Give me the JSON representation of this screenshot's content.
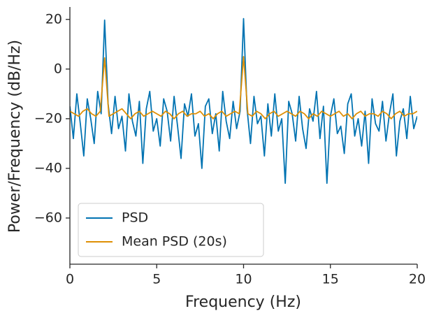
{
  "chart_data": {
    "type": "line",
    "xlabel": "Frequency (Hz)",
    "ylabel": "Power/Frequency (dB/Hz)",
    "xlim": [
      0,
      20
    ],
    "ylim": [
      -78.6,
      25
    ],
    "xticks": [
      0,
      5,
      10,
      15,
      20
    ],
    "yticks": [
      {
        "value": -60,
        "label": "−60"
      },
      {
        "value": -40,
        "label": "−40"
      },
      {
        "value": -20,
        "label": "−20"
      },
      0,
      20
    ],
    "grid": false,
    "legend": "lower left",
    "series": [
      {
        "name": "PSD",
        "color": "#0173b2",
        "x": [
          0,
          0.2,
          0.4,
          0.6,
          0.8,
          1,
          1.2,
          1.4,
          1.6,
          1.8,
          2,
          2.2,
          2.4,
          2.6,
          2.8,
          3,
          3.2,
          3.4,
          3.6,
          3.8,
          4,
          4.2,
          4.4,
          4.6,
          4.8,
          5,
          5.2,
          5.4,
          5.6,
          5.8,
          6,
          6.2,
          6.4,
          6.6,
          6.8,
          7,
          7.2,
          7.4,
          7.6,
          7.8,
          8,
          8.2,
          8.4,
          8.6,
          8.8,
          9,
          9.2,
          9.4,
          9.6,
          9.8,
          10,
          10.2,
          10.4,
          10.6,
          10.8,
          11,
          11.2,
          11.4,
          11.6,
          11.8,
          12,
          12.2,
          12.4,
          12.6,
          12.8,
          13,
          13.2,
          13.4,
          13.6,
          13.8,
          14,
          14.2,
          14.4,
          14.6,
          14.8,
          15,
          15.2,
          15.4,
          15.6,
          15.8,
          16,
          16.2,
          16.4,
          16.6,
          16.8,
          17,
          17.2,
          17.4,
          17.6,
          17.8,
          18,
          18.2,
          18.4,
          18.6,
          18.8,
          19,
          19.2,
          19.4,
          19.6,
          19.8,
          20
        ],
        "values": [
          -15,
          -28,
          -10,
          -22,
          -35,
          -12,
          -20,
          -30,
          -9,
          -18,
          19.7,
          -14,
          -26,
          -11,
          -24,
          -19,
          -33,
          -10,
          -21,
          -27,
          -13,
          -38,
          -16,
          -9,
          -25,
          -20,
          -31,
          -12,
          -17,
          -29,
          -11,
          -23,
          -36,
          -14,
          -19,
          -10,
          -27,
          -22,
          -40,
          -15,
          -12,
          -26,
          -18,
          -33,
          -9,
          -21,
          -28,
          -13,
          -24,
          -17,
          20.3,
          -16,
          -30,
          -11,
          -22,
          -19,
          -35,
          -14,
          -27,
          -10,
          -25,
          -20,
          -46,
          -13,
          -18,
          -29,
          -11,
          -24,
          -32,
          -16,
          -21,
          -9,
          -28,
          -15,
          -46,
          -19,
          -12,
          -26,
          -23,
          -34,
          -14,
          -10,
          -27,
          -20,
          -31,
          -17,
          -38,
          -12,
          -22,
          -25,
          -13,
          -29,
          -18,
          -10,
          -35,
          -21,
          -16,
          -28,
          -11,
          -24,
          -19
        ]
      },
      {
        "name": "Mean PSD (20s)",
        "color": "#de8f05",
        "x": [
          0,
          0.25,
          0.5,
          0.75,
          1,
          1.25,
          1.5,
          1.75,
          2,
          2.25,
          2.5,
          2.75,
          3,
          3.25,
          3.5,
          3.75,
          4,
          4.25,
          4.5,
          4.75,
          5,
          5.25,
          5.5,
          5.75,
          6,
          6.25,
          6.5,
          6.75,
          7,
          7.25,
          7.5,
          7.75,
          8,
          8.25,
          8.5,
          8.75,
          9,
          9.25,
          9.5,
          9.75,
          10,
          10.25,
          10.5,
          10.75,
          11,
          11.25,
          11.5,
          11.75,
          12,
          12.25,
          12.5,
          12.75,
          13,
          13.25,
          13.5,
          13.75,
          14,
          14.25,
          14.5,
          14.75,
          15,
          15.25,
          15.5,
          15.75,
          16,
          16.25,
          16.5,
          16.75,
          17,
          17.25,
          17.5,
          17.75,
          18,
          18.25,
          18.5,
          18.75,
          19,
          19.25,
          19.5,
          19.75,
          20
        ],
        "values": [
          -17,
          -18,
          -19,
          -17,
          -16,
          -18,
          -19,
          -17,
          4.5,
          -19,
          -18,
          -17,
          -16,
          -18,
          -20,
          -18,
          -17,
          -19,
          -18,
          -17,
          -18,
          -19,
          -17,
          -18,
          -20,
          -18,
          -17,
          -19,
          -18,
          -18,
          -17,
          -19,
          -18,
          -20,
          -18,
          -17,
          -19,
          -18,
          -17,
          -18,
          5,
          -18,
          -19,
          -17,
          -18,
          -20,
          -18,
          -17,
          -19,
          -18,
          -17,
          -18,
          -19,
          -17,
          -18,
          -20,
          -18,
          -19,
          -17,
          -18,
          -19,
          -18,
          -17,
          -19,
          -18,
          -20,
          -18,
          -17,
          -19,
          -18,
          -18,
          -19,
          -17,
          -18,
          -20,
          -18,
          -17,
          -19,
          -18,
          -18,
          -17
        ]
      }
    ]
  }
}
